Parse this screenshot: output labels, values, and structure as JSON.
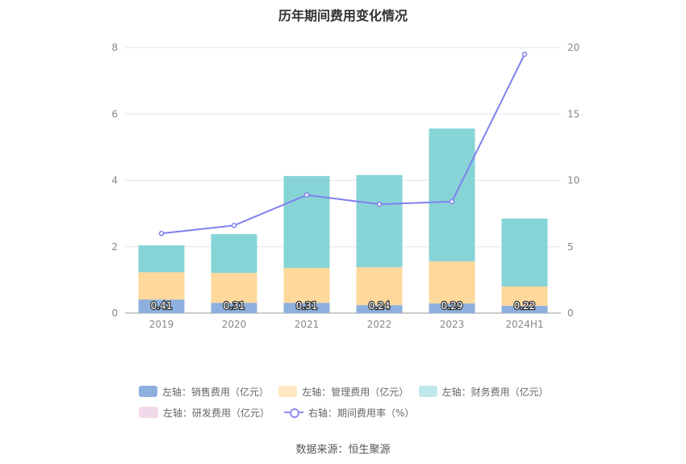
{
  "title": "历年期间费用变化情况",
  "source": "数据来源：恒生聚源",
  "colors": {
    "sales": "#8eb0de",
    "admin": "#ffd89b",
    "finance": "#86d4d6",
    "rd": "#f2d9ea",
    "ratio": "#8080ee"
  },
  "legend": {
    "sales": "左轴：销售费用（亿元）",
    "admin": "左轴：管理费用（亿元）",
    "finance": "左轴：财务费用（亿元）",
    "rd": "左轴：研发费用（亿元）",
    "ratio": "右轴：期间费用率（%）"
  },
  "chart_data": {
    "type": "bar",
    "stacked": true,
    "categories": [
      "2019",
      "2020",
      "2021",
      "2022",
      "2023",
      "2024H1"
    ],
    "series": [
      {
        "name": "左轴：销售费用（亿元）",
        "axis": "left",
        "values": [
          0.41,
          0.31,
          0.31,
          0.24,
          0.29,
          0.22
        ],
        "labels": [
          "0.41",
          "0.31",
          "0.31",
          "0.24",
          "0.29",
          "0.22"
        ]
      },
      {
        "name": "左轴：管理费用（亿元）",
        "axis": "left",
        "values": [
          0.82,
          0.9,
          1.05,
          1.14,
          1.27,
          0.58
        ]
      },
      {
        "name": "左轴：财务费用（亿元）",
        "axis": "left",
        "values": [
          0.81,
          1.17,
          2.77,
          2.78,
          4.0,
          2.05
        ]
      },
      {
        "name": "左轴：研发费用（亿元）",
        "axis": "left",
        "values": [
          0,
          0,
          0,
          0,
          0,
          0
        ]
      },
      {
        "name": "右轴：期间费用率（%）",
        "axis": "right",
        "type": "line",
        "values": [
          6.0,
          6.6,
          8.9,
          8.2,
          8.4,
          19.5
        ]
      }
    ],
    "y_left": {
      "min": 0,
      "max": 8,
      "ticks": [
        "0",
        "2",
        "4",
        "6",
        "8"
      ]
    },
    "y_right": {
      "min": 0,
      "max": 20,
      "ticks": [
        "0",
        "5",
        "10",
        "15",
        "20"
      ]
    },
    "grid": true,
    "legend_position": "bottom"
  }
}
